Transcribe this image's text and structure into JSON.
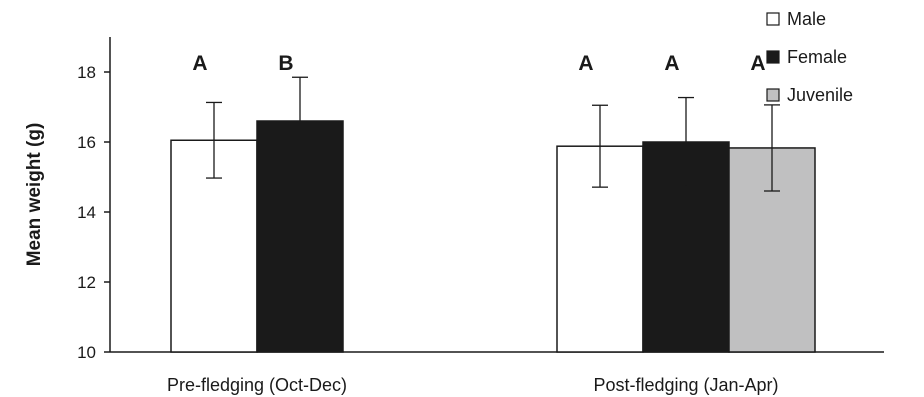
{
  "chart_data": {
    "type": "bar",
    "ylabel": "Mean weight (g)",
    "ylim": [
      10,
      19
    ],
    "yticks": [
      10,
      12,
      14,
      16,
      18
    ],
    "grid": false,
    "legend_position": "top-right",
    "categories": [
      "Pre-fledging (Oct-Dec)",
      "Post-fledging (Jan-Apr)"
    ],
    "series": [
      {
        "name": "Male",
        "color": "#ffffff",
        "values": [
          16.05,
          15.88
        ],
        "errors": [
          1.08,
          1.17
        ],
        "significance": [
          "A",
          "A"
        ]
      },
      {
        "name": "Female",
        "color": "#1a1a1a",
        "values": [
          16.6,
          16.0
        ],
        "errors": [
          1.25,
          1.27
        ],
        "significance": [
          "B",
          "A"
        ]
      },
      {
        "name": "Juvenile",
        "color": "#c0c0c1",
        "values": [
          null,
          15.83
        ],
        "errors": [
          null,
          1.23
        ],
        "significance": [
          null,
          "A"
        ]
      }
    ]
  }
}
